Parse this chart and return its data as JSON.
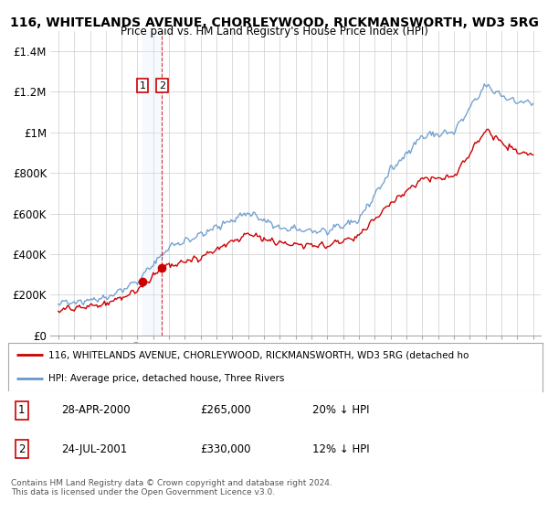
{
  "title": "116, WHITELANDS AVENUE, CHORLEYWOOD, RICKMANSWORTH, WD3 5RG",
  "subtitle": "Price paid vs. HM Land Registry's House Price Index (HPI)",
  "legend_line1": "116, WHITELANDS AVENUE, CHORLEYWOOD, RICKMANSWORTH, WD3 5RG (detached ho",
  "legend_line2": "HPI: Average price, detached house, Three Rivers",
  "footer": "Contains HM Land Registry data © Crown copyright and database right 2024.\nThis data is licensed under the Open Government Licence v3.0.",
  "transactions": [
    {
      "num": "1",
      "date": "28-APR-2000",
      "price": "£265,000",
      "hpi": "20% ↓ HPI"
    },
    {
      "num": "2",
      "date": "24-JUL-2001",
      "price": "£330,000",
      "hpi": "12% ↓ HPI"
    }
  ],
  "xlim": [
    1994.5,
    2025.5
  ],
  "ylim": [
    0,
    1500000
  ],
  "yticks": [
    0,
    200000,
    400000,
    600000,
    800000,
    1000000,
    1200000,
    1400000
  ],
  "ytick_labels": [
    "£0",
    "£200K",
    "£400K",
    "£600K",
    "£800K",
    "£1M",
    "£1.2M",
    "£1.4M"
  ],
  "red_color": "#cc0000",
  "blue_color": "#6699cc",
  "blue_fill_color": "#ddeeff",
  "bg_color": "#ffffff",
  "grid_color": "#cccccc",
  "sale1_x": 2000.32,
  "sale1_y": 265000,
  "sale2_x": 2001.56,
  "sale2_y": 330000,
  "hpi_seed": 42,
  "hpi_noise_scale": 6000,
  "red_noise_scale": 5000
}
